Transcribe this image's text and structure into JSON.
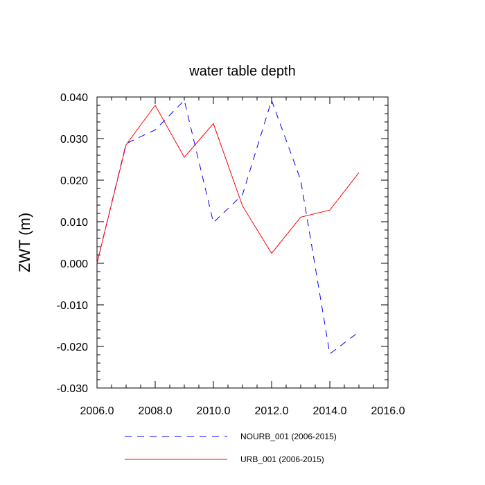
{
  "chart_data": {
    "type": "line",
    "title": "water table depth",
    "xlabel": "",
    "ylabel": "ZWT  (m)",
    "xlim": [
      2006.0,
      2016.0
    ],
    "ylim": [
      -0.03,
      0.04
    ],
    "x_ticks": [
      "2006.0",
      "2008.0",
      "2010.0",
      "2012.0",
      "2014.0",
      "2016.0"
    ],
    "y_ticks": [
      "0.040",
      "0.030",
      "0.020",
      "0.010",
      "0.000",
      "-0.010",
      "-0.020",
      "-0.030"
    ],
    "x": [
      2006,
      2007,
      2008,
      2009,
      2010,
      2011,
      2012,
      2013,
      2014,
      2015
    ],
    "series": [
      {
        "name": "NOURB_001 (2006-2015)",
        "color": "#0000ff",
        "dash": "dashed",
        "values": [
          0.0,
          0.0288,
          0.0321,
          0.0392,
          0.0098,
          0.0165,
          0.0392,
          0.02,
          -0.0218,
          -0.0165
        ]
      },
      {
        "name": "URB_001 (2006-2015)",
        "color": "#ff0000",
        "dash": "solid",
        "values": [
          0.0,
          0.0285,
          0.038,
          0.0255,
          0.0336,
          0.0138,
          0.0024,
          0.0111,
          0.0128,
          0.0218
        ]
      }
    ],
    "grid": false,
    "legend_position": "bottom"
  }
}
